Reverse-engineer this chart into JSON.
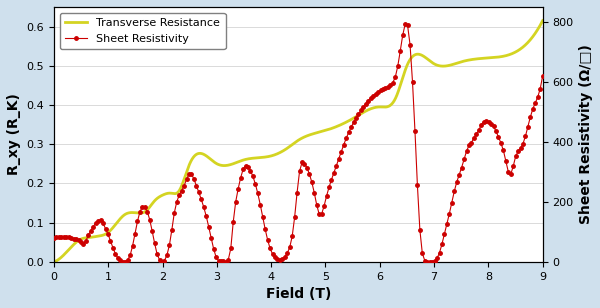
{
  "background_color": "#cfe0ed",
  "plot_bg_color": "#ffffff",
  "xlabel": "Field (T)",
  "ylabel_left": "R_xy (R_K)",
  "ylabel_right": "Sheet Resistivity (Ω/□)",
  "xlim": [
    0,
    9
  ],
  "ylim_left": [
    0,
    0.65
  ],
  "ylim_right": [
    0,
    850
  ],
  "yticks_left": [
    0.0,
    0.1,
    0.2,
    0.3,
    0.4,
    0.5,
    0.6
  ],
  "yticks_right": [
    0,
    200,
    400,
    600,
    800
  ],
  "xticks": [
    0,
    1,
    2,
    3,
    4,
    5,
    6,
    7,
    8,
    9
  ],
  "legend_labels": [
    "Transverse Resistance",
    "Sheet Resistivity"
  ],
  "hall_color": "#d4d422",
  "resist_color": "#cc0000",
  "resist_marker_color": "#cc0000",
  "legend_fontsize": 8,
  "axis_fontsize": 10,
  "tick_fontsize": 8
}
